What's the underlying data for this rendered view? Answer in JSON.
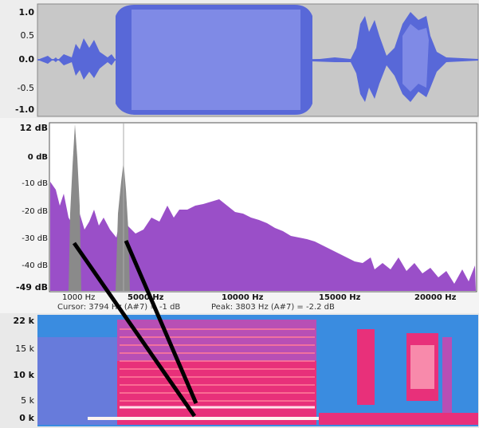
{
  "waveform": {
    "y_labels": [
      "1.0",
      "0.5",
      "0.0",
      "-0.5",
      "-1.0"
    ],
    "colors": {
      "background": "#c8c8c8",
      "wave": "#5868d8",
      "wave_light": "#7f8ae6"
    }
  },
  "spectrum": {
    "db_labels": [
      "12 dB",
      "0 dB",
      "-10 dB",
      "-20 dB",
      "-30 dB",
      "-40 dB",
      "-49 dB"
    ],
    "freq_labels": [
      "1000 Hz",
      "5000 Hz",
      "10000 Hz",
      "15000 Hz",
      "20000 Hz"
    ],
    "cursor_text": "Cursor: 3794 Hz (A#7) = -1 dB",
    "peak_text": "Peak: 3803 Hz (A#7) = -2.2 dB",
    "colors": {
      "fill": "#9a4fc8",
      "highlight": "#8a8a8a"
    }
  },
  "spectrogram": {
    "y_labels": [
      "22 k",
      "15 k",
      "10 k",
      "5 k",
      "0 k"
    ],
    "colors": {
      "base": "#3a8ce0",
      "hot": "#e8307a",
      "white": "#fff4f0"
    }
  }
}
